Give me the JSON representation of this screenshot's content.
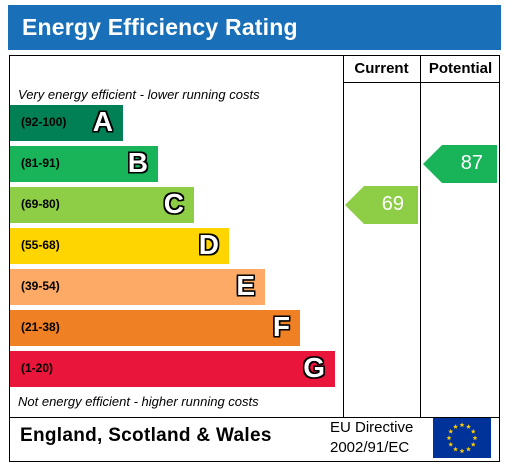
{
  "header": {
    "title": "Energy Efficiency Rating"
  },
  "columns": {
    "current": "Current",
    "potential": "Potential"
  },
  "notes": {
    "top": "Very energy efficient - lower running costs",
    "bottom": "Not energy efficient - higher running costs"
  },
  "footer": {
    "region": "England, Scotland & Wales",
    "directive_line1": "EU Directive",
    "directive_line2": "2002/91/EC"
  },
  "chart_data": {
    "type": "bar",
    "bands": [
      {
        "letter": "A",
        "range": "(92-100)",
        "color": "#008054"
      },
      {
        "letter": "B",
        "range": "(81-91)",
        "color": "#19b459"
      },
      {
        "letter": "C",
        "range": "(69-80)",
        "color": "#8dce46"
      },
      {
        "letter": "D",
        "range": "(55-68)",
        "color": "#ffd500"
      },
      {
        "letter": "E",
        "range": "(39-54)",
        "color": "#fcaa65"
      },
      {
        "letter": "F",
        "range": "(21-38)",
        "color": "#ef8023"
      },
      {
        "letter": "G",
        "range": "(1-20)",
        "color": "#e9153b"
      }
    ],
    "current": {
      "value": 69,
      "band": "C",
      "color": "#8dce46",
      "label": "69"
    },
    "potential": {
      "value": 87,
      "band": "B",
      "color": "#19b459",
      "label": "87"
    }
  }
}
